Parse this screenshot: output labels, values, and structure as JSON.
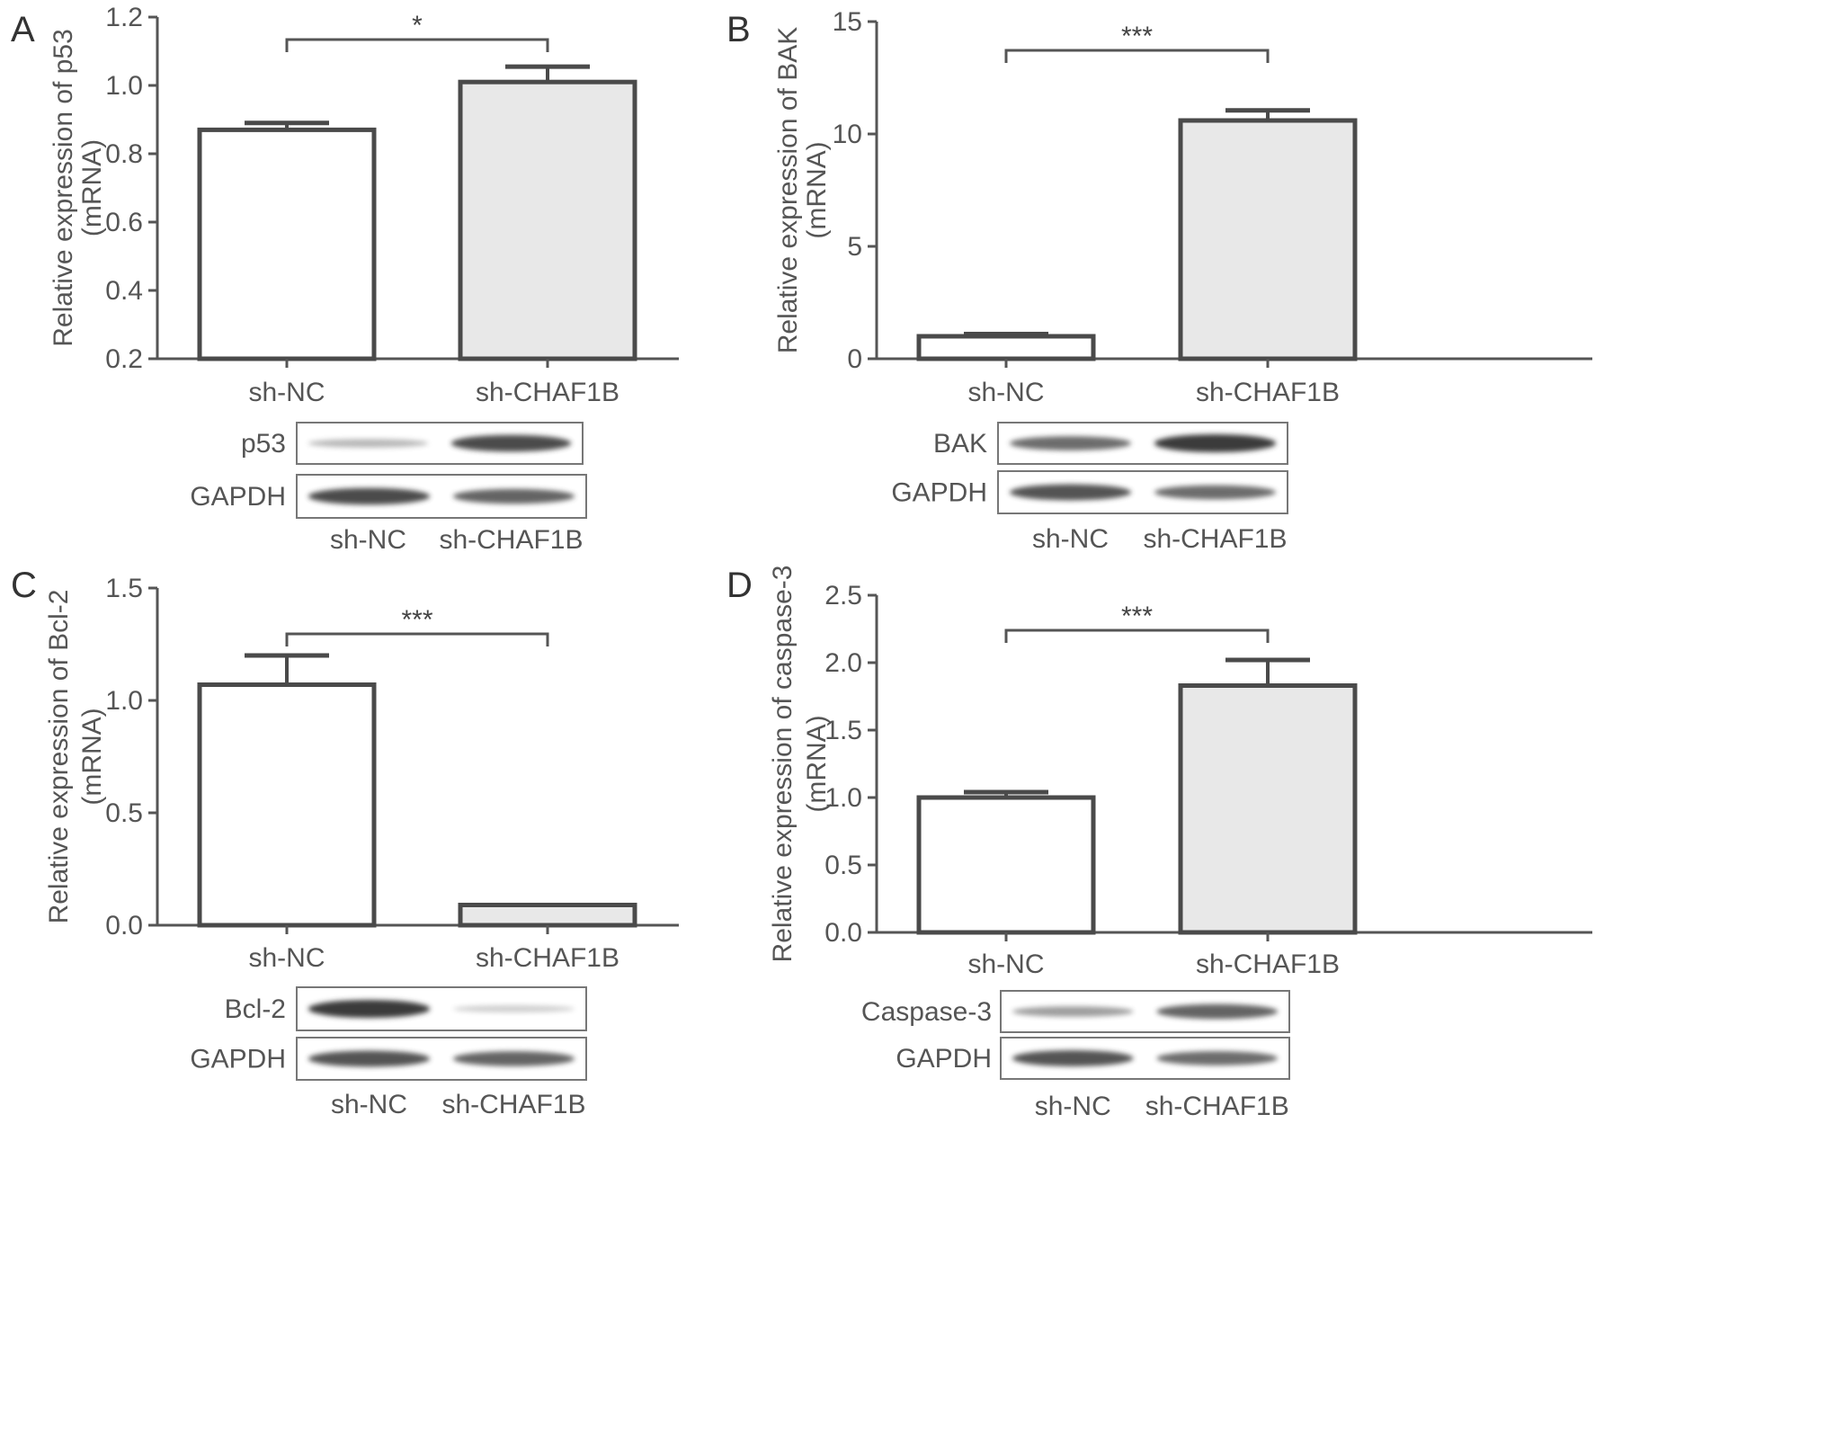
{
  "figure": {
    "colors": {
      "axis": "#555555",
      "bar_stroke": "#4a4a4a",
      "bar_fill_control": "#ffffff",
      "bar_fill_treated": "#e8e8e8",
      "blot_box": "#777777",
      "band": "#3a3a3a"
    }
  },
  "chart_data": [
    {
      "panel": "A",
      "type": "bar",
      "categories": [
        "sh-NC",
        "sh-CHAF1B"
      ],
      "values": [
        0.87,
        1.01
      ],
      "errors": [
        0.02,
        0.045
      ],
      "ylim": [
        0.2,
        1.2
      ],
      "yticks": [
        "0.2",
        "0.4",
        "0.6",
        "0.8",
        "1.0",
        "1.2"
      ],
      "ylabel": "Relative expression of p53",
      "ylabel2": "(mRNA)",
      "significance": "*",
      "blot": {
        "rows": [
          "p53",
          "GAPDH"
        ],
        "lanes": [
          "sh-NC",
          "sh-CHAF1B"
        ],
        "intensity": [
          [
            0.25,
            0.9
          ],
          [
            0.9,
            0.75
          ]
        ]
      }
    },
    {
      "panel": "B",
      "type": "bar",
      "categories": [
        "sh-NC",
        "sh-CHAF1B"
      ],
      "values": [
        1.0,
        10.6
      ],
      "errors": [
        0.1,
        0.45
      ],
      "ylim": [
        0,
        15
      ],
      "yticks": [
        "0",
        "5",
        "10",
        "15"
      ],
      "ylabel": "Relative expression of BAK",
      "ylabel2": "(mRNA)",
      "significance": "***",
      "blot": {
        "rows": [
          "BAK",
          "GAPDH"
        ],
        "lanes": [
          "sh-NC",
          "sh-CHAF1B"
        ],
        "intensity": [
          [
            0.7,
            1.0
          ],
          [
            0.85,
            0.7
          ]
        ]
      }
    },
    {
      "panel": "C",
      "type": "bar",
      "categories": [
        "sh-NC",
        "sh-CHAF1B"
      ],
      "values": [
        1.07,
        0.09
      ],
      "errors": [
        0.13,
        0.0
      ],
      "ylim": [
        0,
        1.5
      ],
      "yticks": [
        "0.0",
        "0.5",
        "1.0",
        "1.5"
      ],
      "ylabel": "Relative expression of Bcl-2",
      "ylabel2": "(mRNA)",
      "significance": "***",
      "blot": {
        "rows": [
          "Bcl-2",
          "GAPDH"
        ],
        "lanes": [
          "sh-NC",
          "sh-CHAF1B"
        ],
        "intensity": [
          [
            1.0,
            0.12
          ],
          [
            0.85,
            0.75
          ]
        ]
      }
    },
    {
      "panel": "D",
      "type": "bar",
      "categories": [
        "sh-NC",
        "sh-CHAF1B"
      ],
      "values": [
        1.0,
        1.83
      ],
      "errors": [
        0.04,
        0.19
      ],
      "ylim": [
        0,
        2.5
      ],
      "yticks": [
        "0.0",
        "0.5",
        "1.0",
        "1.5",
        "2.0",
        "2.5"
      ],
      "ylabel": "Relative expression of caspase-3",
      "ylabel2": "(mRNA)",
      "significance": "***",
      "blot": {
        "rows": [
          "Caspase-3",
          "GAPDH"
        ],
        "lanes": [
          "sh-NC",
          "sh-CHAF1B"
        ],
        "intensity": [
          [
            0.4,
            0.75
          ],
          [
            0.85,
            0.7
          ]
        ]
      }
    }
  ]
}
